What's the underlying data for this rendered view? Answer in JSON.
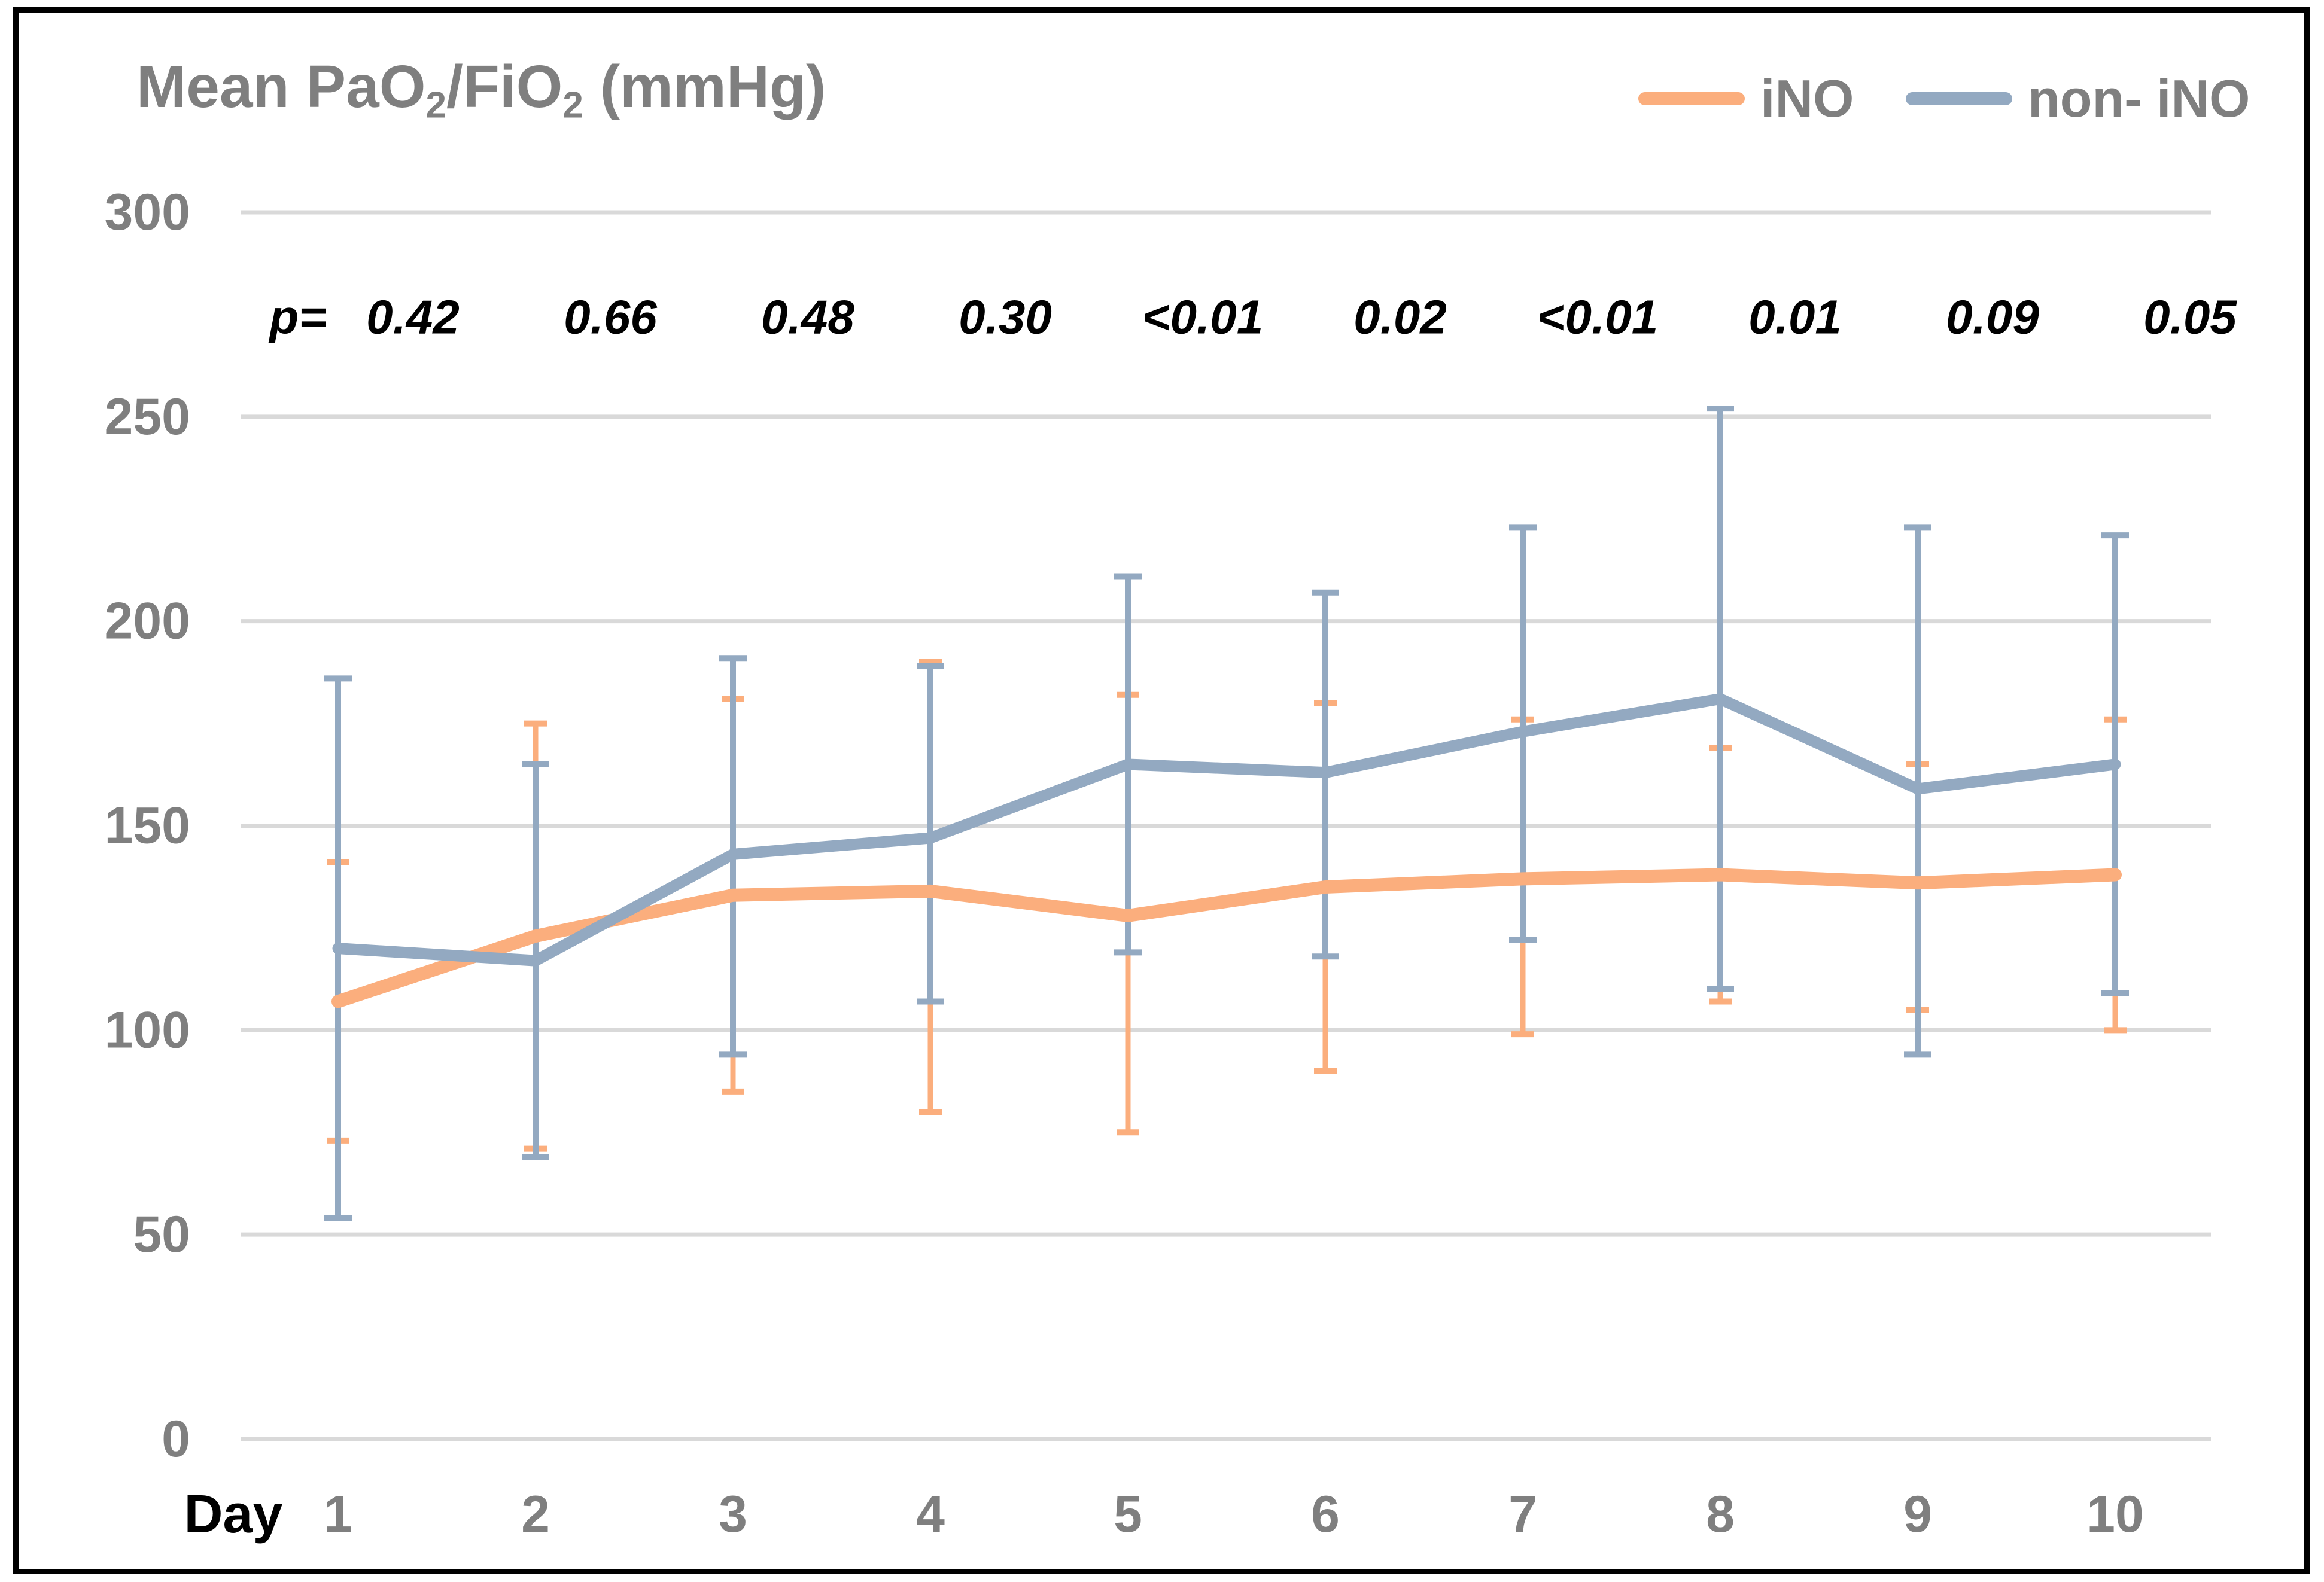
{
  "title": {
    "part1": "Mean PaO",
    "sub1": "2",
    "part2": "/FiO",
    "sub2": "2",
    "part3": " (mmHg)"
  },
  "legend": {
    "items": [
      {
        "label": "iNO",
        "color": "#FBAE7D"
      },
      {
        "label": "non- iNO",
        "color": "#93A9C1"
      }
    ]
  },
  "y_axis": {
    "ticks": [
      "300",
      "250",
      "200",
      "150",
      "100",
      "50",
      "0"
    ]
  },
  "x_axis": {
    "label": "Day",
    "ticks": [
      "1",
      "2",
      "3",
      "4",
      "5",
      "6",
      "7",
      "8",
      "9",
      "10"
    ]
  },
  "p_row": {
    "prefix": "p=",
    "values": [
      "0.42",
      "0.66",
      "0.48",
      "0.30",
      "<0.01",
      "0.02",
      "<0.01",
      "0.01",
      "0.09",
      "0.05"
    ]
  },
  "colors": {
    "ino": "#FBAE7D",
    "non_ino": "#93A9C1",
    "gridline": "#D9D9D9",
    "axis_text": "#7F7F7F",
    "p_text": "#000000",
    "day_label": "#000000",
    "border": "#000000"
  },
  "chart_data": {
    "type": "line",
    "title": "Mean PaO2/FiO2 (mmHg)",
    "xlabel": "Day",
    "ylabel": "Mean PaO2/FiO2 (mmHg)",
    "categories": [
      1,
      2,
      3,
      4,
      5,
      6,
      7,
      8,
      9,
      10
    ],
    "ylim": [
      0,
      300
    ],
    "y_tick_step": 50,
    "grid": true,
    "legend_position": "top-right",
    "error_bars": true,
    "series": [
      {
        "name": "iNO",
        "color": "#FBAE7D",
        "values": [
          107,
          123,
          133,
          134,
          128,
          135,
          137,
          138,
          136,
          138
        ],
        "error_high": [
          141,
          175,
          181,
          190,
          182,
          180,
          176,
          169,
          165,
          176
        ],
        "error_low": [
          73,
          71,
          85,
          80,
          75,
          90,
          99,
          107,
          105,
          100
        ]
      },
      {
        "name": "non- iNO",
        "color": "#93A9C1",
        "values": [
          120,
          117,
          143,
          147,
          165,
          163,
          173,
          181,
          159,
          165
        ],
        "error_high": [
          186,
          165,
          191,
          189,
          211,
          207,
          223,
          252,
          223,
          221
        ],
        "error_low": [
          54,
          69,
          94,
          107,
          119,
          118,
          122,
          110,
          94,
          109
        ]
      }
    ],
    "p_values": [
      "0.42",
      "0.66",
      "0.48",
      "0.30",
      "<0.01",
      "0.02",
      "<0.01",
      "0.01",
      "0.09",
      "0.05"
    ]
  }
}
